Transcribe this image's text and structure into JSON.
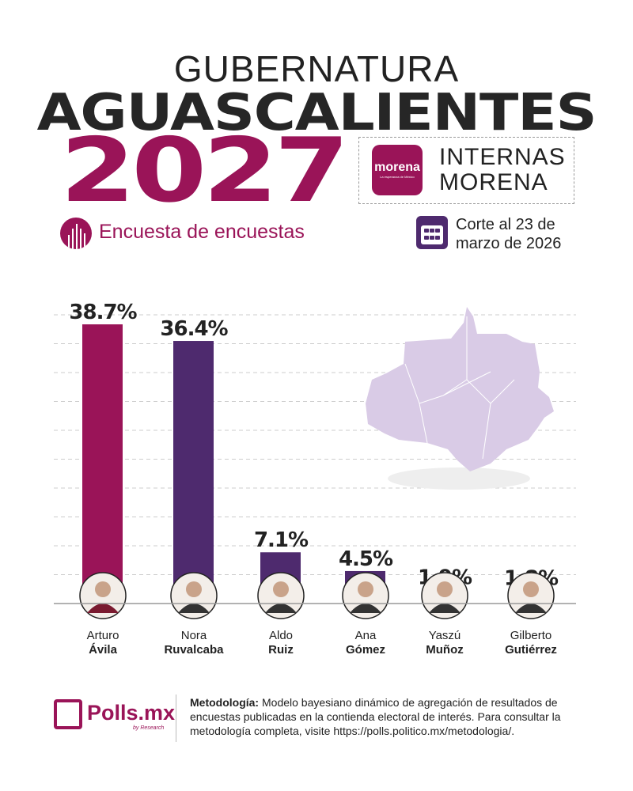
{
  "header": {
    "title_line1": "GUBERNATURA",
    "title_line2": "AGUASCALIENTES",
    "year": "2027",
    "badge_logo": "morena",
    "badge_logo_tagline": "La esperanza de México",
    "badge_line1": "INTERNAS",
    "badge_line2": "MORENA",
    "subtitle": "Encuesta de encuestas",
    "date_line1": "Corte al 23 de",
    "date_line2": "marzo de 2026"
  },
  "colors": {
    "primary": "#9a1458",
    "secondary": "#4e2a6e",
    "map": "#d9cbe6"
  },
  "icons": {
    "subtitle": "bar-chart-circle-icon",
    "date": "calendar-icon"
  },
  "chart_data": {
    "type": "bar",
    "categories": [
      "Arturo Ávila",
      "Nora Ruvalcaba",
      "Aldo Ruiz",
      "Ana Gómez",
      "Yaszú Muñoz",
      "Gilberto Gutiérrez"
    ],
    "first_names": [
      "Arturo",
      "Nora",
      "Aldo",
      "Ana",
      "Yaszú",
      "Gilberto"
    ],
    "last_names": [
      "Ávila",
      "Ruvalcaba",
      "Ruiz",
      "Gómez",
      "Muñoz",
      "Gutiérrez"
    ],
    "values": [
      38.7,
      36.4,
      7.1,
      4.5,
      1.9,
      1.8
    ],
    "labels": [
      "38.7%",
      "36.4%",
      "7.1%",
      "4.5%",
      "1.9%",
      "1.8%"
    ],
    "bar_colors": [
      "#9a1458",
      "#4e2a6e",
      "#4e2a6e",
      "#4e2a6e",
      "#4e2a6e",
      "#4e2a6e"
    ],
    "ylim": [
      0,
      40
    ],
    "grid": true
  },
  "footer": {
    "brand": "Polls.mx",
    "brand_sub": "by Research",
    "method_label": "Metodología:",
    "method_text": " Modelo bayesiano dinámico de agregación de resultados de encuestas publicadas en la contienda electoral de interés. Para consultar la metodología completa, visite https://polls.politico.mx/metodologia/."
  }
}
